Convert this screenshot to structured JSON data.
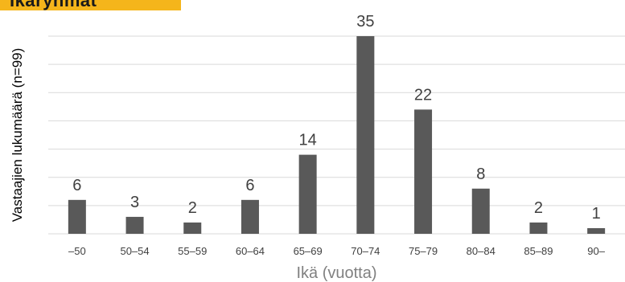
{
  "header_tag": {
    "text": "Ikäryhmät",
    "color": "#F5B51B"
  },
  "chart_data": {
    "type": "bar",
    "categories": [
      "–50",
      "50–54",
      "55–59",
      "60–64",
      "65–69",
      "70–74",
      "75–79",
      "80–84",
      "85–89",
      "90–"
    ],
    "values": [
      6,
      3,
      2,
      6,
      14,
      35,
      22,
      8,
      2,
      1
    ],
    "title": "",
    "xlabel": "Ikä (vuotta)",
    "ylabel": "Vastaajien lukumäärä (n=99)",
    "ylim": [
      0,
      35
    ],
    "grid": true,
    "legend": "none",
    "colors": {
      "bar": "#595959",
      "grid": "#D9D9D9",
      "text": "#404040",
      "axis_title": "#808080"
    }
  }
}
